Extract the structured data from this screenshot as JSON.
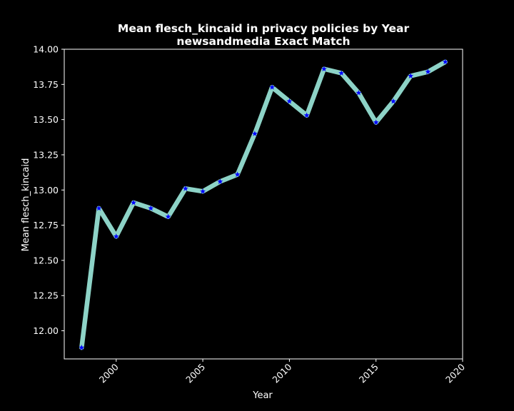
{
  "chart_data": {
    "type": "line",
    "title": "Mean flesch_kincaid in privacy policies by Year",
    "subtitle": "newsandmedia Exact Match",
    "xlabel": "Year",
    "ylabel": "Mean flesch_kincaid",
    "xlim": [
      1997,
      2020
    ],
    "ylim": [
      11.8,
      14.0
    ],
    "xticks": [
      2000,
      2005,
      2010,
      2015,
      2020
    ],
    "yticks": [
      "12.00",
      "12.25",
      "12.50",
      "12.75",
      "13.00",
      "13.25",
      "13.50",
      "13.75",
      "14.00"
    ],
    "grid": false,
    "line_color": "#8dd3c7",
    "marker_color": "#0000ff",
    "background_color": "#000000",
    "x": [
      1998,
      1999,
      2000,
      2001,
      2002,
      2003,
      2004,
      2005,
      2006,
      2007,
      2008,
      2009,
      2010,
      2011,
      2012,
      2013,
      2014,
      2015,
      2016,
      2017,
      2018,
      2019
    ],
    "y": [
      11.88,
      12.87,
      12.67,
      12.91,
      12.87,
      12.81,
      13.01,
      12.99,
      13.06,
      13.11,
      13.4,
      13.73,
      13.63,
      13.53,
      13.86,
      13.83,
      13.69,
      13.48,
      13.63,
      13.81,
      13.84,
      13.91
    ]
  }
}
